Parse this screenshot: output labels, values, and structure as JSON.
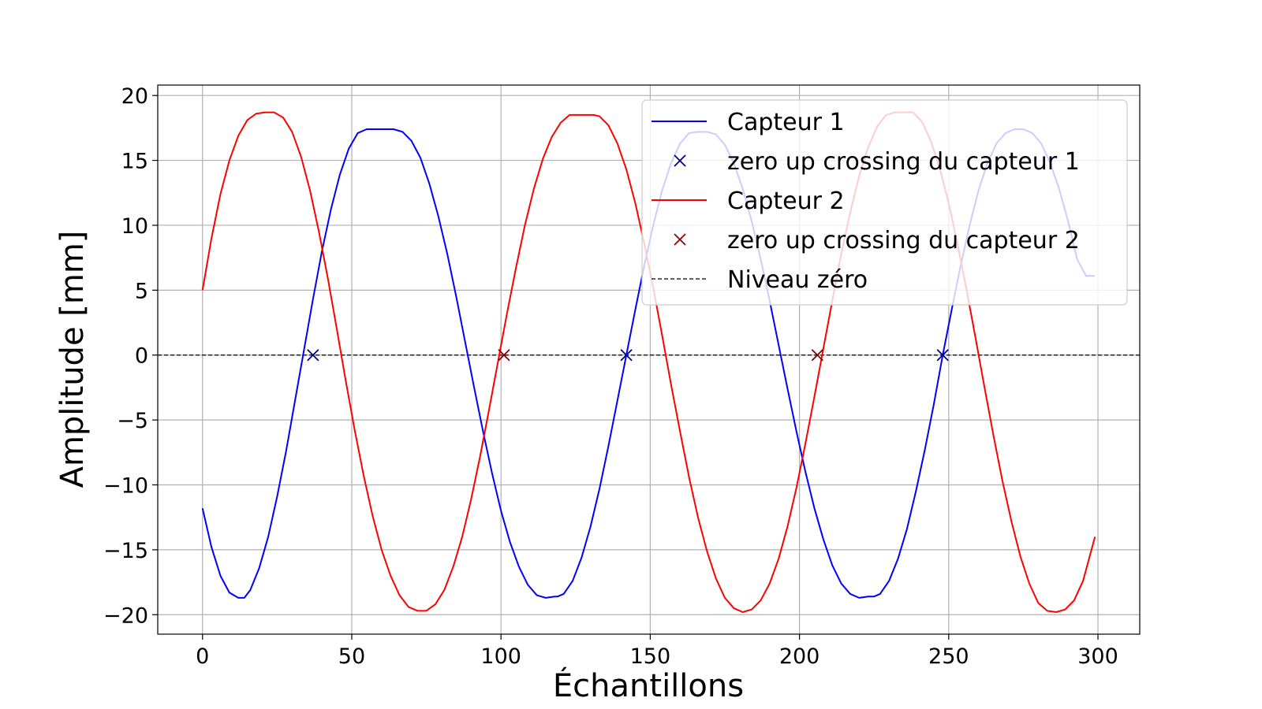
{
  "chart_data": {
    "type": "line",
    "title": "",
    "xlabel": "Échantillons",
    "ylabel": "Amplitude [mm]",
    "xlim": [
      -15,
      314
    ],
    "ylim": [
      -21.5,
      20.8
    ],
    "xticks": [
      0,
      50,
      100,
      150,
      200,
      250,
      300
    ],
    "yticks": [
      -20,
      -15,
      -10,
      -5,
      0,
      5,
      10,
      15,
      20
    ],
    "xtick_labels": [
      "0",
      "50",
      "100",
      "150",
      "200",
      "250",
      "300"
    ],
    "ytick_labels": [
      "−20",
      "−15",
      "−10",
      "−5",
      "0",
      "5",
      "10",
      "15",
      "20"
    ],
    "grid": true,
    "legend_position": "top-right",
    "series": [
      {
        "name": "Capteur 1",
        "kind": "line",
        "color": "#0000ff",
        "x": [
          0,
          3,
          6,
          9,
          12,
          14,
          16,
          19,
          22,
          25,
          28,
          31,
          34,
          37,
          40,
          43,
          46,
          49,
          52,
          55,
          58,
          61,
          64,
          67,
          70,
          73,
          76,
          79,
          82,
          85,
          88,
          91,
          94,
          97,
          100,
          103,
          106,
          109,
          112,
          115,
          118,
          119,
          121,
          124,
          127,
          130,
          133,
          136,
          139,
          142,
          145,
          148,
          151,
          154,
          157,
          160,
          163,
          166,
          169,
          172,
          175,
          178,
          181,
          184,
          187,
          190,
          193,
          196,
          199,
          202,
          205,
          208,
          211,
          214,
          217,
          220,
          223,
          225,
          227,
          230,
          233,
          236,
          239,
          242,
          245,
          248,
          251,
          254,
          257,
          260,
          263,
          266,
          269,
          272,
          275,
          278,
          281,
          284,
          287,
          290,
          293,
          296,
          299
        ],
        "values": [
          -11.8,
          -14.8,
          -17.0,
          -18.3,
          -18.7,
          -18.7,
          -18.1,
          -16.4,
          -14.0,
          -10.9,
          -7.4,
          -3.5,
          0.4,
          4.3,
          8.0,
          11.2,
          13.9,
          15.9,
          17.1,
          17.4,
          17.4,
          17.4,
          17.4,
          17.2,
          16.5,
          15.2,
          13.2,
          10.7,
          7.8,
          4.5,
          1.0,
          -2.5,
          -5.9,
          -9.1,
          -12.0,
          -14.4,
          -16.3,
          -17.7,
          -18.5,
          -18.7,
          -18.6,
          -18.6,
          -18.4,
          -17.4,
          -15.6,
          -13.2,
          -10.3,
          -7.0,
          -3.5,
          0.0,
          3.5,
          6.9,
          10.0,
          12.7,
          14.8,
          16.3,
          17.1,
          17.2,
          17.2,
          17.0,
          16.2,
          14.8,
          12.8,
          10.3,
          7.4,
          4.2,
          0.8,
          -2.6,
          -5.9,
          -9.0,
          -11.8,
          -14.2,
          -16.2,
          -17.6,
          -18.4,
          -18.7,
          -18.6,
          -18.6,
          -18.4,
          -17.4,
          -15.7,
          -13.4,
          -10.5,
          -7.3,
          -3.8,
          0.0,
          3.5,
          6.9,
          10.0,
          12.7,
          14.8,
          16.3,
          17.1,
          17.4,
          17.4,
          17.1,
          16.3,
          14.8,
          12.8,
          10.3,
          7.4,
          6.1,
          6.1
        ]
      },
      {
        "name": "zero up crossing du capteur 1",
        "kind": "marker",
        "color": "#00008b",
        "x": [
          37,
          142,
          248
        ],
        "values": [
          0,
          0,
          0
        ]
      },
      {
        "name": "Capteur 2",
        "kind": "line",
        "color": "#ff0000",
        "x": [
          0,
          3,
          6,
          9,
          12,
          15,
          18,
          21,
          24,
          27,
          30,
          33,
          36,
          39,
          42,
          45,
          48,
          51,
          54,
          57,
          60,
          63,
          66,
          69,
          72,
          75,
          78,
          81,
          84,
          87,
          90,
          93,
          96,
          99,
          102,
          105,
          108,
          111,
          114,
          117,
          120,
          123,
          126,
          129,
          131,
          133,
          136,
          139,
          142,
          145,
          148,
          151,
          154,
          157,
          160,
          163,
          166,
          169,
          172,
          175,
          178,
          181,
          184,
          187,
          190,
          193,
          196,
          199,
          202,
          205,
          208,
          211,
          214,
          217,
          220,
          223,
          226,
          229,
          232,
          235,
          238,
          241,
          244,
          247,
          250,
          253,
          256,
          259,
          262,
          265,
          268,
          271,
          274,
          277,
          280,
          283,
          286,
          289,
          292,
          295,
          299
        ],
        "values": [
          5.0,
          9.0,
          12.4,
          15.0,
          16.9,
          18.1,
          18.6,
          18.7,
          18.7,
          18.3,
          17.2,
          15.3,
          12.7,
          9.5,
          5.9,
          2.0,
          -2.0,
          -5.8,
          -9.3,
          -12.4,
          -15.0,
          -17.0,
          -18.5,
          -19.4,
          -19.7,
          -19.7,
          -19.2,
          -18.1,
          -16.3,
          -14.0,
          -11.1,
          -7.8,
          -4.2,
          -0.5,
          3.2,
          6.7,
          10.0,
          12.8,
          15.1,
          16.8,
          17.9,
          18.5,
          18.5,
          18.5,
          18.5,
          18.4,
          17.7,
          16.3,
          14.3,
          11.7,
          8.6,
          5.2,
          1.5,
          -2.3,
          -5.9,
          -9.4,
          -12.5,
          -15.1,
          -17.2,
          -18.7,
          -19.5,
          -19.8,
          -19.6,
          -18.9,
          -17.6,
          -15.7,
          -13.2,
          -10.2,
          -6.8,
          -3.2,
          0.5,
          4.2,
          7.8,
          11.0,
          13.8,
          16.0,
          17.6,
          18.5,
          18.7,
          18.7,
          18.7,
          18.0,
          16.5,
          14.4,
          11.7,
          8.5,
          5.0,
          1.3,
          -2.5,
          -6.2,
          -9.7,
          -12.8,
          -15.5,
          -17.6,
          -19.1,
          -19.7,
          -19.8,
          -19.6,
          -18.9,
          -17.4,
          -14.0
        ]
      },
      {
        "name": "zero up crossing du capteur 2",
        "kind": "marker",
        "color": "#8b0000",
        "x": [
          101,
          206
        ],
        "values": [
          0,
          0
        ]
      },
      {
        "name": "Niveau zéro",
        "kind": "dashed",
        "color": "#000000",
        "x": [
          -15,
          314
        ],
        "values": [
          0,
          0
        ]
      }
    ]
  }
}
